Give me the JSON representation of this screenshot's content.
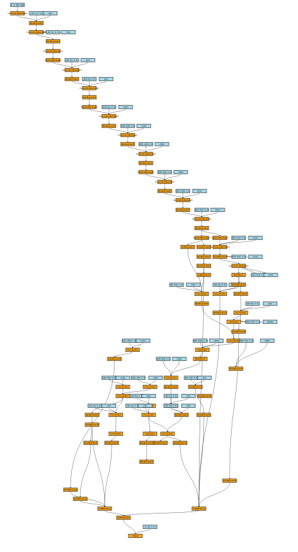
{
  "nodes": [
    {
      "id": "in0",
      "kind": "input",
      "label": "(1, 3, 384, 384)"
    },
    {
      "id": "conv1",
      "kind": "op",
      "label": "ConvolutionBackward"
    },
    {
      "id": "w1",
      "kind": "input",
      "label": "(32, 3, 3, 3)"
    },
    {
      "id": "b1",
      "kind": "input",
      "label": "(32)"
    },
    {
      "id": "r1",
      "kind": "op",
      "label": "ReluBackward"
    },
    {
      "id": "conv2",
      "kind": "op",
      "label": "ConvolutionBackward"
    },
    {
      "id": "w2",
      "kind": "input",
      "label": "(32, 32, 3, 3)"
    },
    {
      "id": "b2",
      "kind": "input",
      "label": "(32)"
    },
    {
      "id": "r2",
      "kind": "op",
      "label": "ReluBackward"
    },
    {
      "id": "conv3",
      "kind": "op",
      "label": "ConvolutionBackward"
    },
    {
      "id": "p1",
      "kind": "op",
      "label": "MaxPoolBackward"
    },
    {
      "id": "w3",
      "kind": "input",
      "label": "(64, 32, 3, 3)"
    },
    {
      "id": "b3",
      "kind": "input",
      "label": "(64)"
    },
    {
      "id": "conv4",
      "kind": "op",
      "label": "ConvolutionBackward"
    },
    {
      "id": "r4",
      "kind": "op",
      "label": "ReluBackward"
    },
    {
      "id": "w4",
      "kind": "input",
      "label": "(64, 64, 3, 3)"
    },
    {
      "id": "b4",
      "kind": "input",
      "label": "(64)"
    },
    {
      "id": "conv5",
      "kind": "op",
      "label": "ConvolutionBackward"
    },
    {
      "id": "r5",
      "kind": "op",
      "label": "ReluBackward"
    },
    {
      "id": "p2",
      "kind": "op",
      "label": "MaxPoolBackward"
    },
    {
      "id": "w5",
      "kind": "input",
      "label": "(128, 64, 3, 3)"
    },
    {
      "id": "b5",
      "kind": "input",
      "label": "(128)"
    },
    {
      "id": "conv6",
      "kind": "op",
      "label": "ConvolutionBackward"
    },
    {
      "id": "r6",
      "kind": "op",
      "label": "ReluBackward"
    },
    {
      "id": "w6",
      "kind": "input",
      "label": "(128, 128, 3, 3)"
    },
    {
      "id": "b6",
      "kind": "input",
      "label": "(128)"
    },
    {
      "id": "conv7",
      "kind": "op",
      "label": "ConvolutionBackward"
    },
    {
      "id": "r7",
      "kind": "op",
      "label": "ReluBackward"
    },
    {
      "id": "w7",
      "kind": "input",
      "label": "(256, 128, 3, 3)"
    },
    {
      "id": "b7",
      "kind": "input",
      "label": "(256)"
    },
    {
      "id": "conv8",
      "kind": "op",
      "label": "ConvolutionBackward"
    },
    {
      "id": "r8",
      "kind": "op",
      "label": "ReluBackward"
    },
    {
      "id": "p3",
      "kind": "op",
      "label": "MaxPoolBackward"
    },
    {
      "id": "w8",
      "kind": "input",
      "label": "(256, 256, 3, 3)"
    },
    {
      "id": "b8",
      "kind": "input",
      "label": "(256)"
    },
    {
      "id": "conv9",
      "kind": "op",
      "label": "ConvolutionBackward"
    },
    {
      "id": "r9",
      "kind": "op",
      "label": "ReluBackward"
    },
    {
      "id": "w9",
      "kind": "input",
      "label": "(512, 256, 3, 3)"
    },
    {
      "id": "b9",
      "kind": "input",
      "label": "(512)"
    },
    {
      "id": "conv10",
      "kind": "op",
      "label": "ConvolutionBackward"
    },
    {
      "id": "r10",
      "kind": "op",
      "label": "ReluBackward"
    },
    {
      "id": "w10",
      "kind": "input",
      "label": "(512, 512, 3, 3)"
    },
    {
      "id": "b10",
      "kind": "input",
      "label": "(512)"
    },
    {
      "id": "conv11",
      "kind": "op",
      "label": "ConvolutionBackward"
    },
    {
      "id": "r11",
      "kind": "op",
      "label": "ReluBackward"
    },
    {
      "id": "m1",
      "kind": "op",
      "label": "MaxPoolBackward"
    },
    {
      "id": "m2",
      "kind": "op",
      "label": "MaxPoolBackward"
    },
    {
      "id": "w11",
      "kind": "input",
      "label": "(512, 512, 3, 3)"
    },
    {
      "id": "b11",
      "kind": "input",
      "label": "(512)"
    },
    {
      "id": "a1",
      "kind": "op",
      "label": "AddBackward"
    },
    {
      "id": "v1",
      "kind": "op",
      "label": "ViewBackward"
    },
    {
      "id": "conv12",
      "kind": "op",
      "label": "ConvolutionBackward"
    },
    {
      "id": "w12",
      "kind": "input",
      "label": "(512, 512, 3, 3)"
    },
    {
      "id": "b12",
      "kind": "input",
      "label": "(512)"
    },
    {
      "id": "r12",
      "kind": "op",
      "label": "ReluBackward"
    },
    {
      "id": "v2",
      "kind": "op",
      "label": "ViewBackward"
    },
    {
      "id": "r13",
      "kind": "op",
      "label": "ReluBackward"
    },
    {
      "id": "conv13",
      "kind": "op",
      "label": "ConvolutionBackward"
    },
    {
      "id": "w13",
      "kind": "input",
      "label": "(512, 512, 3, 3)"
    },
    {
      "id": "b13",
      "kind": "input",
      "label": "(512)"
    },
    {
      "id": "cat1",
      "kind": "op",
      "label": "CatBackward"
    },
    {
      "id": "w14",
      "kind": "input",
      "label": "(64, 512, 1, 1)"
    },
    {
      "id": "b14",
      "kind": "input",
      "label": "(64)"
    },
    {
      "id": "bn1",
      "kind": "op",
      "label": "BatchNorm"
    },
    {
      "id": "c14",
      "kind": "op",
      "label": "Convolution"
    },
    {
      "id": "w15",
      "kind": "input",
      "label": "(64, 64, 3, 3)"
    },
    {
      "id": "b15",
      "kind": "input",
      "label": "(64)"
    },
    {
      "id": "v3",
      "kind": "op",
      "label": "ViewBackward"
    },
    {
      "id": "c15",
      "kind": "op",
      "label": "Convolution"
    },
    {
      "id": "r14",
      "kind": "op",
      "label": "ReluBackward"
    },
    {
      "id": "w16",
      "kind": "input",
      "label": "(64, 64, 3, 3)"
    },
    {
      "id": "b16",
      "kind": "input",
      "label": "(64)"
    },
    {
      "id": "r15",
      "kind": "op",
      "label": "ReluBackward"
    },
    {
      "id": "c16",
      "kind": "op",
      "label": "Convolution"
    },
    {
      "id": "w17",
      "kind": "input",
      "label": "(1024, 512, 1, 1)"
    },
    {
      "id": "b17",
      "kind": "input",
      "label": "(1024)"
    },
    {
      "id": "v4",
      "kind": "op",
      "label": "ViewBackward"
    },
    {
      "id": "up1",
      "kind": "op",
      "label": "Upsample"
    },
    {
      "id": "w18",
      "kind": "input",
      "label": "(256, 1024, 1, 1)"
    },
    {
      "id": "b18",
      "kind": "input",
      "label": "(256)"
    },
    {
      "id": "c17",
      "kind": "op",
      "label": "Convolution"
    },
    {
      "id": "w19",
      "kind": "input",
      "label": "(512, 256, 1, 1)"
    },
    {
      "id": "b19",
      "kind": "input",
      "label": "(512)"
    },
    {
      "id": "up2",
      "kind": "op",
      "label": "Upsample"
    },
    {
      "id": "c18",
      "kind": "op",
      "label": "Convolution"
    },
    {
      "id": "v5",
      "kind": "op",
      "label": "ViewBackward"
    },
    {
      "id": "bn2",
      "kind": "op",
      "label": "BatchNorm"
    },
    {
      "id": "w20",
      "kind": "input",
      "label": "(256, 512, 3, 3)"
    },
    {
      "id": "b20",
      "kind": "input",
      "label": "(256)"
    },
    {
      "id": "w21",
      "kind": "input",
      "label": "(256, 256, 3, 3)"
    },
    {
      "id": "b21",
      "kind": "input",
      "label": "(256)"
    },
    {
      "id": "w22",
      "kind": "input",
      "label": "(128, 256, 3, 3)"
    },
    {
      "id": "b22",
      "kind": "input",
      "label": "(128)"
    },
    {
      "id": "c19",
      "kind": "op",
      "label": "Convolution"
    },
    {
      "id": "r16",
      "kind": "op",
      "label": "ReluBackward"
    },
    {
      "id": "c20",
      "kind": "op",
      "label": "Convolution"
    },
    {
      "id": "c21",
      "kind": "op",
      "label": "Convolution"
    },
    {
      "id": "v6",
      "kind": "op",
      "label": "ViewBackward"
    },
    {
      "id": "w23",
      "kind": "input",
      "label": "(128, 128, 3, 3)"
    },
    {
      "id": "b23",
      "kind": "input",
      "label": "(128)"
    },
    {
      "id": "r17",
      "kind": "op",
      "label": "ReluBackward"
    },
    {
      "id": "w24",
      "kind": "input",
      "label": "(64, 128, 3, 3)"
    },
    {
      "id": "b24",
      "kind": "input",
      "label": "(64)"
    },
    {
      "id": "w25",
      "kind": "input",
      "label": "(64, 64, 3, 3)"
    },
    {
      "id": "b25",
      "kind": "input",
      "label": "(64)"
    },
    {
      "id": "c22",
      "kind": "op",
      "label": "Convolution"
    },
    {
      "id": "up3",
      "kind": "op",
      "label": "Upsample"
    },
    {
      "id": "c23",
      "kind": "op",
      "label": "Convolution"
    },
    {
      "id": "r18",
      "kind": "op",
      "label": "ReluBackward"
    },
    {
      "id": "v7",
      "kind": "op",
      "label": "ViewBackward"
    },
    {
      "id": "w26",
      "kind": "input",
      "label": "(32, 64, 3, 3)"
    },
    {
      "id": "b26",
      "kind": "input",
      "label": "(32)"
    },
    {
      "id": "w27",
      "kind": "input",
      "label": "(32, 32, 3, 3)"
    },
    {
      "id": "b27",
      "kind": "input",
      "label": "(32)"
    },
    {
      "id": "c24",
      "kind": "op",
      "label": "Convolution"
    },
    {
      "id": "v8",
      "kind": "op",
      "label": "ViewBackward"
    },
    {
      "id": "r19",
      "kind": "op",
      "label": "ReluBackward"
    },
    {
      "id": "c25",
      "kind": "op",
      "label": "Convolution"
    },
    {
      "id": "r20",
      "kind": "op",
      "label": "ReluBackward"
    },
    {
      "id": "w28",
      "kind": "input",
      "label": "(16, 32, 3, 3)"
    },
    {
      "id": "b28",
      "kind": "input",
      "label": "(16)"
    },
    {
      "id": "w29",
      "kind": "input",
      "label": "(16, 16, 3, 3)"
    },
    {
      "id": "b29",
      "kind": "input",
      "label": "(16)"
    },
    {
      "id": "c26",
      "kind": "op",
      "label": "Convolution"
    },
    {
      "id": "up4",
      "kind": "op",
      "label": "Upsample"
    },
    {
      "id": "c27",
      "kind": "op",
      "label": "Convolution"
    },
    {
      "id": "r21",
      "kind": "op",
      "label": "ReluBackward"
    },
    {
      "id": "v9",
      "kind": "op",
      "label": "ViewBackward"
    },
    {
      "id": "r22",
      "kind": "op",
      "label": "ReluBackward"
    },
    {
      "id": "v10",
      "kind": "op",
      "label": "ViewBackward"
    },
    {
      "id": "v11",
      "kind": "op",
      "label": "ViewBackward"
    },
    {
      "id": "v12",
      "kind": "op",
      "label": "ViewBackward"
    },
    {
      "id": "v13",
      "kind": "op",
      "label": "ViewBackward"
    },
    {
      "id": "v14",
      "kind": "op",
      "label": "ViewBackward"
    },
    {
      "id": "cat2",
      "kind": "op",
      "label": "CatBackward"
    },
    {
      "id": "cat3",
      "kind": "op",
      "label": "CatBackward"
    },
    {
      "id": "v15",
      "kind": "op",
      "label": "ViewBackward"
    },
    {
      "id": "v16",
      "kind": "op",
      "label": "ViewBackward"
    },
    {
      "id": "final",
      "kind": "op",
      "label": "AddBackward"
    },
    {
      "id": "wf",
      "kind": "input",
      "label": "(1, 16, 1, 1)"
    },
    {
      "id": "out",
      "kind": "op",
      "label": "Output"
    }
  ],
  "colors": {
    "op": "#f5a623",
    "input": "#a8d8e8",
    "edge": "#222222"
  }
}
